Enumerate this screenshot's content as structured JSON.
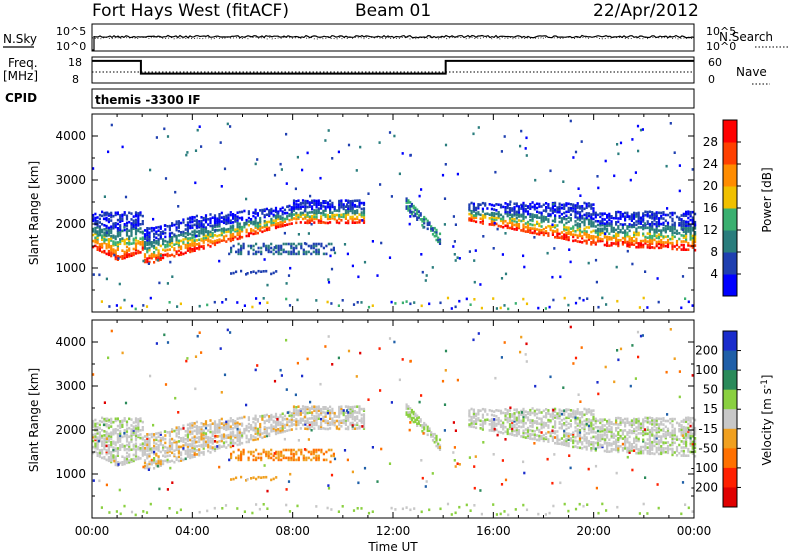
{
  "header": {
    "station": "Fort Hays West (fitACF)",
    "beam": "Beam 01",
    "date": "22/Apr/2012"
  },
  "side_labels": {
    "nsky": "N.Sky",
    "nsearch": "N.Search",
    "freq": "Freq.",
    "freq_unit": "[MHz]",
    "nave": "Nave",
    "cpid": "CPID"
  },
  "cpid_text": "themis -3300 IF",
  "noise_panel": {
    "left_ticks": [
      "10^5",
      "10^0"
    ],
    "right_ticks": [
      "10^5",
      "10^0"
    ]
  },
  "freq_panel": {
    "left_ticks": [
      "18",
      "8"
    ],
    "right_ticks": [
      "60",
      "0"
    ]
  },
  "chart_data": [
    {
      "type": "heatmap",
      "name": "power",
      "xlabel": "",
      "ylabel": "Slant Range [km]",
      "ylim": [
        0,
        4500
      ],
      "xlim": [
        0,
        24
      ],
      "y_ticks": [
        "1000",
        "2000",
        "3000",
        "4000"
      ],
      "colorbar": {
        "label": "Power [dB]",
        "ticks": [
          "4",
          "8",
          "12",
          "16",
          "20",
          "24",
          "28"
        ],
        "colors": [
          "#0000ff",
          "#1f3fb0",
          "#2a7d7d",
          "#3ab070",
          "#f0c000",
          "#ff8c00",
          "#ff4000",
          "#ff0000"
        ]
      }
    },
    {
      "type": "heatmap",
      "name": "velocity",
      "xlabel": "Time UT",
      "ylabel": "Slant Range [km]",
      "ylim": [
        0,
        4500
      ],
      "xlim": [
        0,
        24
      ],
      "y_ticks": [
        "1000",
        "2000",
        "3000",
        "4000"
      ],
      "x_ticks": [
        "00:00",
        "04:00",
        "08:00",
        "12:00",
        "16:00",
        "20:00",
        "00:00"
      ],
      "colorbar": {
        "label": "Velocity [m s-1]",
        "ticks": [
          "200",
          "100",
          "50",
          "15",
          "-15",
          "-50",
          "-100",
          "-200"
        ],
        "colors": [
          "#1a2ccc",
          "#1f5fa8",
          "#2a8a5a",
          "#8ad040",
          "#c8c8c8",
          "#f0a020",
          "#ff7000",
          "#ff2000",
          "#e00000"
        ]
      }
    }
  ]
}
